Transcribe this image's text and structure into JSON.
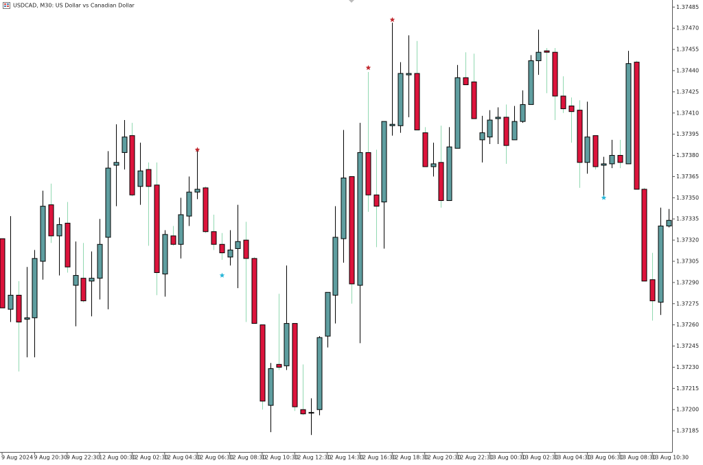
{
  "chart_data": {
    "type": "candlestick",
    "title": "USDCAD, M30:  US Dollar vs Canadian Dollar",
    "categories": [
      "9 Aug 2024",
      null,
      null,
      null,
      "9 Aug 20:30",
      null,
      null,
      null,
      "9 Aug 22:30",
      null,
      null,
      null,
      "12 Aug 00:30",
      null,
      null,
      null,
      "12 Aug 02:30",
      null,
      null,
      null,
      "12 Aug 04:30",
      null,
      null,
      null,
      "12 Aug 06:30",
      null,
      null,
      null,
      "12 Aug 08:30",
      null,
      null,
      null,
      "12 Aug 10:30",
      null,
      null,
      null,
      "12 Aug 12:30",
      null,
      null,
      null,
      "12 Aug 14:30",
      null,
      null,
      null,
      "12 Aug 16:30",
      null,
      null,
      null,
      "12 Aug 18:30",
      null,
      null,
      null,
      "12 Aug 20:30",
      null,
      null,
      null,
      "12 Aug 22:30",
      null,
      null,
      null,
      "13 Aug 00:30",
      null,
      null,
      null,
      "13 Aug 02:30",
      null,
      null,
      null,
      "13 Aug 04:30",
      null,
      null,
      null,
      "13 Aug 06:30",
      null,
      null,
      null,
      "13 Aug 08:30",
      null,
      null,
      null,
      "13 Aug 10:30",
      null,
      null
    ],
    "open": [
      1.37321,
      1.37271,
      1.37281,
      1.37264,
      1.37265,
      1.37305,
      1.37345,
      1.37323,
      1.37332,
      1.37288,
      1.37293,
      1.37291,
      1.37293,
      1.37322,
      1.37373,
      1.37382,
      1.37394,
      1.37358,
      1.3737,
      1.37359,
      1.37296,
      1.37323,
      1.37317,
      1.37337,
      1.37354,
      1.37357,
      1.37326,
      1.37317,
      1.37308,
      1.37314,
      1.3732,
      1.37307,
      1.3726,
      1.37203,
      1.37232,
      1.37231,
      1.37261,
      1.372,
      1.37198,
      1.372,
      1.37252,
      1.37281,
      1.37321,
      1.37365,
      1.37288,
      1.37382,
      1.37352,
      1.37347,
      1.37401,
      1.37401,
      1.37437,
      1.37438,
      1.37396,
      1.37372,
      1.37375,
      1.37348,
      1.37385,
      1.37435,
      1.37432,
      1.37391,
      1.37393,
      1.37406,
      1.37407,
      1.37391,
      1.37404,
      1.37416,
      1.37447,
      1.37454,
      1.37453,
      1.37422,
      1.37415,
      1.37412,
      1.37375,
      1.37394,
      1.37373,
      1.37374,
      1.3738,
      1.37374,
      1.37446,
      1.37356,
      1.37292,
      1.37276,
      1.3733
    ],
    "high": [
      1.37321,
      1.37337,
      1.37291,
      1.37301,
      1.37313,
      1.37355,
      1.3736,
      1.37336,
      1.37347,
      1.37319,
      1.37318,
      1.37312,
      1.37335,
      1.37383,
      1.37402,
      1.37405,
      1.37403,
      1.37389,
      1.37375,
      1.37375,
      1.37327,
      1.3733,
      1.3735,
      1.37365,
      1.37384,
      1.37358,
      1.37338,
      1.37325,
      1.37327,
      1.37345,
      1.37333,
      1.37308,
      1.3726,
      1.37233,
      1.37282,
      1.37302,
      1.37261,
      1.37232,
      1.37208,
      1.37252,
      1.37283,
      1.37344,
      1.37398,
      1.37365,
      1.37403,
      1.37439,
      1.37384,
      1.37404,
      1.37474,
      1.37446,
      1.37465,
      1.37461,
      1.374,
      1.37389,
      1.37401,
      1.374,
      1.37444,
      1.37453,
      1.37452,
      1.37408,
      1.37412,
      1.37414,
      1.37416,
      1.37415,
      1.37426,
      1.37451,
      1.37469,
      1.37456,
      1.37456,
      1.37436,
      1.37421,
      1.37419,
      1.37418,
      1.37394,
      1.37379,
      1.37391,
      1.37391,
      1.37454,
      1.37447,
      1.37357,
      1.37311,
      1.37343,
      1.37342
    ],
    "low": [
      1.37272,
      1.37262,
      1.37227,
      1.37237,
      1.37237,
      1.37292,
      1.37318,
      1.37295,
      1.37297,
      1.37259,
      1.37276,
      1.37266,
      1.37278,
      1.37271,
      1.37344,
      1.3737,
      1.37351,
      1.37345,
      1.37316,
      1.37281,
      1.3728,
      1.37316,
      1.37307,
      1.3733,
      1.37349,
      1.37325,
      1.37313,
      1.37306,
      1.37302,
      1.37286,
      1.37262,
      1.37261,
      1.372,
      1.37184,
      1.37228,
      1.37228,
      1.37199,
      1.37196,
      1.37182,
      1.37196,
      1.37244,
      1.37261,
      1.37304,
      1.37275,
      1.37247,
      1.3734,
      1.37315,
      1.37314,
      1.37394,
      1.37396,
      1.37407,
      1.37398,
      1.37372,
      1.37365,
      1.37343,
      1.37348,
      1.37385,
      1.3743,
      1.37406,
      1.37375,
      1.37388,
      1.37388,
      1.37374,
      1.37391,
      1.37403,
      1.37416,
      1.37437,
      1.37424,
      1.37405,
      1.3741,
      1.37389,
      1.37357,
      1.37367,
      1.3737,
      1.37351,
      1.37371,
      1.37371,
      1.37374,
      1.37356,
      1.37291,
      1.37263,
      1.37267,
      1.37329
    ],
    "close": [
      1.37272,
      1.37281,
      1.37262,
      1.37265,
      1.37307,
      1.37344,
      1.37323,
      1.37331,
      1.37301,
      1.37295,
      1.37277,
      1.37293,
      1.37317,
      1.37371,
      1.37375,
      1.37393,
      1.37352,
      1.37369,
      1.37358,
      1.37297,
      1.37324,
      1.37317,
      1.37338,
      1.37354,
      1.37356,
      1.37326,
      1.37317,
      1.37311,
      1.37313,
      1.37319,
      1.37307,
      1.37261,
      1.37206,
      1.37229,
      1.3723,
      1.37261,
      1.37202,
      1.37197,
      1.37198,
      1.37251,
      1.37283,
      1.37322,
      1.37364,
      1.37289,
      1.37382,
      1.37352,
      1.37344,
      1.37404,
      1.37402,
      1.37438,
      1.37438,
      1.37398,
      1.37372,
      1.37374,
      1.37348,
      1.37386,
      1.37435,
      1.3743,
      1.37406,
      1.37396,
      1.37405,
      1.37407,
      1.37387,
      1.37404,
      1.37416,
      1.37447,
      1.37453,
      1.37453,
      1.37422,
      1.37413,
      1.37411,
      1.37375,
      1.37393,
      1.37372,
      1.37374,
      1.3738,
      1.37375,
      1.37445,
      1.37356,
      1.37291,
      1.37277,
      1.3733,
      1.37334
    ],
    "up_color": "#5f9ea0",
    "down_color": "#dc143c",
    "up_wick_color": "#000000",
    "down_wick_color": "#90d8b0",
    "markers": [
      {
        "color": "#c0272d",
        "values": [
          null,
          null,
          null,
          null,
          null,
          null,
          null,
          null,
          null,
          null,
          null,
          null,
          null,
          null,
          null,
          null,
          null,
          null,
          null,
          null,
          null,
          null,
          null,
          null,
          1.37384,
          null,
          null,
          null,
          null,
          null,
          null,
          null,
          null,
          null,
          null,
          null,
          null,
          null,
          null,
          null,
          null,
          null,
          null,
          null,
          null,
          1.37442,
          null,
          null,
          1.37476,
          null,
          null,
          null,
          null,
          null,
          null,
          null,
          null,
          null,
          null,
          null,
          null,
          null,
          null,
          null,
          null,
          null,
          null,
          null,
          null,
          null,
          null,
          null,
          null,
          null,
          null,
          null,
          null,
          null,
          null,
          null,
          null,
          null,
          null
        ]
      },
      {
        "color": "#29b6d8",
        "values": [
          null,
          null,
          null,
          null,
          null,
          null,
          null,
          null,
          null,
          null,
          null,
          null,
          null,
          null,
          null,
          null,
          null,
          null,
          null,
          null,
          null,
          null,
          null,
          null,
          null,
          null,
          null,
          1.37295,
          null,
          null,
          null,
          null,
          null,
          null,
          null,
          null,
          null,
          null,
          null,
          null,
          null,
          null,
          null,
          null,
          null,
          null,
          null,
          null,
          null,
          null,
          null,
          null,
          null,
          null,
          null,
          null,
          null,
          null,
          null,
          null,
          null,
          null,
          null,
          null,
          null,
          null,
          null,
          null,
          null,
          null,
          null,
          null,
          null,
          null,
          1.3735,
          null,
          null,
          null,
          null,
          null,
          null,
          null,
          null
        ]
      }
    ],
    "ylim": [
      1.3717,
      1.3749
    ],
    "yticks": [
      1.37485,
      {
        "value": 1.3747,
        "label": "1.37470"
      },
      1.37455,
      {
        "value": 1.3744,
        "label": "1.37440"
      },
      1.37425,
      {
        "value": 1.3741,
        "label": "1.37410"
      },
      1.37395,
      {
        "value": 1.3738,
        "label": "1.37380"
      },
      1.37365,
      {
        "value": 1.3735,
        "label": "1.37350"
      },
      1.37335,
      {
        "value": 1.3732,
        "label": "1.37320"
      },
      1.37305,
      {
        "value": 1.3729,
        "label": "1.37290"
      },
      1.37275,
      {
        "value": 1.3726,
        "label": "1.37260"
      },
      1.37245,
      {
        "value": 1.3723,
        "label": "1.37230"
      },
      1.37215,
      {
        "value": 1.372,
        "label": "1.37200"
      },
      1.37185
    ],
    "grid": false
  }
}
